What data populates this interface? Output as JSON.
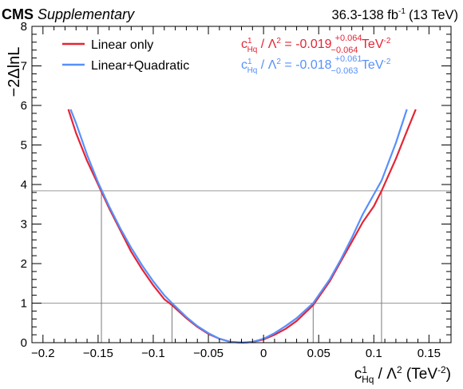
{
  "header": {
    "experiment": "CMS",
    "label": "Supplementary",
    "lumi_range": "36.3-138 fb",
    "lumi_exp": "-1",
    "energy": "(13 TeV)"
  },
  "colors": {
    "linear": "#e42536",
    "quadratic": "#5790fc",
    "threshold": "#9a9a9a",
    "crossing": "#7a7a7a",
    "axis": "#000000"
  },
  "results": [
    {
      "series": "Linear only",
      "coef": "c",
      "sup": "1",
      "sub": "Hq",
      "over": " / ",
      "lambda": "Λ",
      "lsup": "2",
      "eq": " = ",
      "value": "-0.019",
      "up": "+0.064",
      "down": "−0.064",
      "unit": " TeV",
      "usup": "-2"
    },
    {
      "series": "Linear+Quadratic",
      "coef": "c",
      "sup": "1",
      "sub": "Hq",
      "over": " / ",
      "lambda": "Λ",
      "lsup": "2",
      "eq": " = ",
      "value": "-0.018",
      "up": "+0.061",
      "down": "−0.063",
      "unit": " TeV",
      "usup": "-2"
    }
  ],
  "axes": {
    "y_title": "−2ΔlnL",
    "x_title": {
      "coef": "c",
      "sup": "1",
      "sub": "Hq",
      "over": " / ",
      "lambda": "Λ",
      "lsup": "2",
      "unit": " (TeV",
      "usup": "-2",
      "close": ")"
    }
  },
  "chart_data": {
    "type": "line",
    "xlim": [
      -0.21,
      0.17
    ],
    "ylim": [
      0,
      8
    ],
    "x_ticks": [
      -0.2,
      -0.15,
      -0.1,
      -0.05,
      0,
      0.05,
      0.1,
      0.15
    ],
    "x_tick_labels": [
      "−0.2",
      "−0.15",
      "−0.1",
      "−0.05",
      "0",
      "0.05",
      "0.1",
      "0.15"
    ],
    "y_ticks": [
      0,
      1,
      2,
      3,
      4,
      5,
      6,
      7,
      8
    ],
    "y_tick_labels": [
      "0",
      "1",
      "2",
      "3",
      "4",
      "5",
      "6",
      "7",
      "8"
    ],
    "thresholds": [
      1,
      3.84
    ],
    "crossings_x": [
      -0.147,
      -0.083,
      0.045,
      0.107
    ],
    "legend_position": "top-left",
    "series": [
      {
        "name": "Linear only",
        "x": [
          -0.177,
          -0.17,
          -0.16,
          -0.15,
          -0.14,
          -0.13,
          -0.12,
          -0.11,
          -0.1,
          -0.09,
          -0.083,
          -0.07,
          -0.06,
          -0.05,
          -0.04,
          -0.03,
          -0.019,
          -0.01,
          0,
          0.01,
          0.02,
          0.03,
          0.045,
          0.06,
          0.07,
          0.08,
          0.09,
          0.1,
          0.107,
          0.12,
          0.13,
          0.138
        ],
        "y": [
          5.9,
          5.3,
          4.6,
          4.0,
          3.4,
          2.85,
          2.3,
          1.85,
          1.45,
          1.1,
          0.95,
          0.62,
          0.4,
          0.22,
          0.1,
          0.02,
          0.0,
          0.02,
          0.08,
          0.2,
          0.35,
          0.55,
          0.95,
          1.55,
          2.05,
          2.55,
          3.05,
          3.45,
          3.84,
          4.65,
          5.35,
          5.9
        ]
      },
      {
        "name": "Linear+Quadratic",
        "x": [
          -0.175,
          -0.17,
          -0.16,
          -0.15,
          -0.14,
          -0.13,
          -0.12,
          -0.11,
          -0.1,
          -0.09,
          -0.083,
          -0.07,
          -0.06,
          -0.05,
          -0.04,
          -0.03,
          -0.018,
          -0.01,
          0,
          0.01,
          0.02,
          0.03,
          0.045,
          0.06,
          0.07,
          0.08,
          0.09,
          0.1,
          0.107,
          0.12,
          0.13
        ],
        "y": [
          5.9,
          5.55,
          4.75,
          4.05,
          3.45,
          2.9,
          2.4,
          1.95,
          1.55,
          1.2,
          1.0,
          0.65,
          0.42,
          0.24,
          0.1,
          0.02,
          0.0,
          0.02,
          0.1,
          0.24,
          0.42,
          0.62,
          1.0,
          1.6,
          2.1,
          2.65,
          3.25,
          3.75,
          4.1,
          5.05,
          5.9
        ]
      }
    ]
  }
}
